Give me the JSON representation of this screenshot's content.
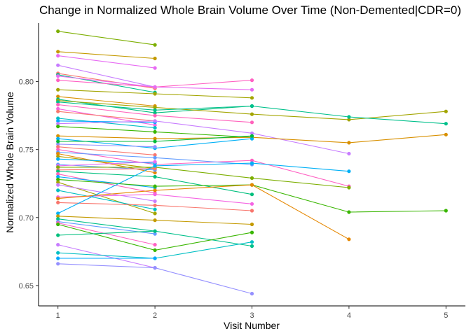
{
  "chart_data": {
    "type": "line",
    "title": "Change in Normalized Whole Brain Volume Over Time (Non-Demented|CDR=0)",
    "xlabel": "Visit Number",
    "ylabel": "Normalized Whole Brain Volume",
    "x_ticks": [
      "1",
      "2",
      "3",
      "4",
      "5"
    ],
    "y_ticks": [
      "0.65",
      "0.70",
      "0.75",
      "0.80"
    ],
    "xlim": [
      0.8,
      5.2
    ],
    "ylim": [
      0.635,
      0.843
    ],
    "grid": false,
    "legend": "none",
    "series": [
      {
        "color": "#7CAE00",
        "x": [
          1,
          2
        ],
        "y": [
          0.837,
          0.827
        ]
      },
      {
        "color": "#C49A00",
        "x": [
          1,
          2
        ],
        "y": [
          0.822,
          0.817
        ]
      },
      {
        "color": "#E76BF3",
        "x": [
          1,
          2
        ],
        "y": [
          0.819,
          0.81
        ]
      },
      {
        "color": "#C77CFF",
        "x": [
          1,
          2
        ],
        "y": [
          0.812,
          0.796
        ]
      },
      {
        "color": "#F8766D",
        "x": [
          1,
          2
        ],
        "y": [
          0.806,
          0.795
        ]
      },
      {
        "color": "#00C08B",
        "x": [
          1,
          2
        ],
        "y": [
          0.805,
          0.792
        ]
      },
      {
        "color": "#FF61C3",
        "x": [
          1,
          2,
          3
        ],
        "y": [
          0.801,
          0.796,
          0.801
        ]
      },
      {
        "color": "#E76BF3",
        "x": [
          1,
          2,
          3
        ],
        "y": [
          0.804,
          0.796,
          0.794
        ]
      },
      {
        "color": "#A3A500",
        "x": [
          1,
          2,
          3
        ],
        "y": [
          0.794,
          0.791,
          0.788
        ]
      },
      {
        "color": "#D89000",
        "x": [
          1,
          2
        ],
        "y": [
          0.789,
          0.782
        ]
      },
      {
        "color": "#00BF7D",
        "x": [
          1,
          2,
          3
        ],
        "y": [
          0.787,
          0.777,
          0.782
        ]
      },
      {
        "color": "#A3A500",
        "x": [
          1,
          2,
          3,
          4,
          5
        ],
        "y": [
          0.786,
          0.781,
          0.776,
          0.772,
          0.778
        ]
      },
      {
        "color": "#00C08B",
        "x": [
          1,
          2,
          3,
          4,
          5
        ],
        "y": [
          0.785,
          0.779,
          0.782,
          0.774,
          0.769
        ]
      },
      {
        "color": "#FF62BC",
        "x": [
          1,
          2,
          3
        ],
        "y": [
          0.783,
          0.775,
          0.77
        ]
      },
      {
        "color": "#F564E3",
        "x": [
          1,
          2
        ],
        "y": [
          0.78,
          0.768
        ]
      },
      {
        "color": "#F8766D",
        "x": [
          1,
          2
        ],
        "y": [
          0.778,
          0.771
        ]
      },
      {
        "color": "#00BFC4",
        "x": [
          1,
          2
        ],
        "y": [
          0.773,
          0.766
        ]
      },
      {
        "color": "#00A9FF",
        "x": [
          1,
          2
        ],
        "y": [
          0.771,
          0.77
        ]
      },
      {
        "color": "#C77CFF",
        "x": [
          1,
          2,
          3,
          4
        ],
        "y": [
          0.769,
          0.771,
          0.762,
          0.747
        ]
      },
      {
        "color": "#39B600",
        "x": [
          1,
          2,
          3
        ],
        "y": [
          0.767,
          0.763,
          0.759
        ]
      },
      {
        "color": "#D89000",
        "x": [
          1,
          2,
          3,
          4,
          5
        ],
        "y": [
          0.76,
          0.758,
          0.759,
          0.755,
          0.761
        ]
      },
      {
        "color": "#00B0F6",
        "x": [
          1,
          2,
          3
        ],
        "y": [
          0.758,
          0.751,
          0.758
        ]
      },
      {
        "color": "#9590FF",
        "x": [
          1,
          2
        ],
        "y": [
          0.754,
          0.752
        ]
      },
      {
        "color": "#00BA38",
        "x": [
          1,
          2,
          3
        ],
        "y": [
          0.756,
          0.756,
          0.76
        ]
      },
      {
        "color": "#F8766D",
        "x": [
          1,
          2
        ],
        "y": [
          0.752,
          0.746
        ]
      },
      {
        "color": "#FF61C3",
        "x": [
          1,
          2,
          3,
          4
        ],
        "y": [
          0.75,
          0.739,
          0.742,
          0.723
        ]
      },
      {
        "color": "#619CFF",
        "x": [
          1,
          2,
          3
        ],
        "y": [
          0.748,
          0.744,
          0.739
        ]
      },
      {
        "color": "#E58700",
        "x": [
          1,
          2
        ],
        "y": [
          0.747,
          0.733
        ]
      },
      {
        "color": "#B79F00",
        "x": [
          1,
          2
        ],
        "y": [
          0.745,
          0.736
        ]
      },
      {
        "color": "#00B0F6",
        "x": [
          1,
          2
        ],
        "y": [
          0.743,
          0.74
        ]
      },
      {
        "color": "#619CFF",
        "x": [
          1,
          2
        ],
        "y": [
          0.739,
          0.735
        ]
      },
      {
        "color": "#E76BF3",
        "x": [
          1,
          2
        ],
        "y": [
          0.738,
          0.741
        ]
      },
      {
        "color": "#7CAE00",
        "x": [
          1,
          2,
          3,
          4
        ],
        "y": [
          0.737,
          0.737,
          0.729,
          0.722
        ]
      },
      {
        "color": "#F8766D",
        "x": [
          1,
          2
        ],
        "y": [
          0.735,
          0.736
        ]
      },
      {
        "color": "#00BF7D",
        "x": [
          1,
          2,
          3
        ],
        "y": [
          0.734,
          0.73,
          0.717
        ]
      },
      {
        "color": "#FF62BC",
        "x": [
          1,
          2
        ],
        "y": [
          0.732,
          0.718
        ]
      },
      {
        "color": "#00A9FF",
        "x": [
          1,
          2
        ],
        "y": [
          0.73,
          0.722
        ]
      },
      {
        "color": "#39B600",
        "x": [
          1,
          2,
          3,
          4,
          5
        ],
        "y": [
          0.728,
          0.723,
          0.724,
          0.704,
          0.705
        ]
      },
      {
        "color": "#A3A500",
        "x": [
          1,
          2
        ],
        "y": [
          0.726,
          0.703
        ]
      },
      {
        "color": "#C77CFF",
        "x": [
          1,
          2
        ],
        "y": [
          0.724,
          0.712
        ]
      },
      {
        "color": "#00BFC4",
        "x": [
          1,
          2
        ],
        "y": [
          0.72,
          0.706
        ]
      },
      {
        "color": "#F564E3",
        "x": [
          1,
          2,
          3
        ],
        "y": [
          0.715,
          0.717,
          0.71
        ]
      },
      {
        "color": "#E58700",
        "x": [
          1,
          2,
          3,
          4
        ],
        "y": [
          0.714,
          0.72,
          0.724,
          0.684
        ]
      },
      {
        "color": "#F8766D",
        "x": [
          1,
          2,
          3
        ],
        "y": [
          0.711,
          0.709,
          0.705
        ]
      },
      {
        "color": "#00B0F6",
        "x": [
          1,
          2,
          3,
          4
        ],
        "y": [
          0.703,
          0.738,
          0.74,
          0.734
        ]
      },
      {
        "color": "#C49A00",
        "x": [
          1,
          2,
          3
        ],
        "y": [
          0.701,
          0.698,
          0.695
        ]
      },
      {
        "color": "#00C08B",
        "x": [
          1,
          2,
          3
        ],
        "y": [
          0.699,
          0.69,
          0.679
        ]
      },
      {
        "color": "#619CFF",
        "x": [
          1,
          2
        ],
        "y": [
          0.697,
          0.688
        ]
      },
      {
        "color": "#FF61C3",
        "x": [
          1,
          2
        ],
        "y": [
          0.696,
          0.68
        ]
      },
      {
        "color": "#39B600",
        "x": [
          1,
          2,
          3
        ],
        "y": [
          0.695,
          0.676,
          0.689
        ]
      },
      {
        "color": "#00BF7D",
        "x": [
          1,
          2
        ],
        "y": [
          0.687,
          0.69
        ]
      },
      {
        "color": "#C77CFF",
        "x": [
          1,
          2
        ],
        "y": [
          0.68,
          0.663
        ]
      },
      {
        "color": "#00BFC4",
        "x": [
          1,
          2,
          3
        ],
        "y": [
          0.674,
          0.67,
          0.682
        ]
      },
      {
        "color": "#00A9FF",
        "x": [
          1,
          2
        ],
        "y": [
          0.67,
          0.67
        ]
      },
      {
        "color": "#9590FF",
        "x": [
          1,
          2,
          3
        ],
        "y": [
          0.666,
          0.663,
          0.644
        ]
      }
    ]
  }
}
